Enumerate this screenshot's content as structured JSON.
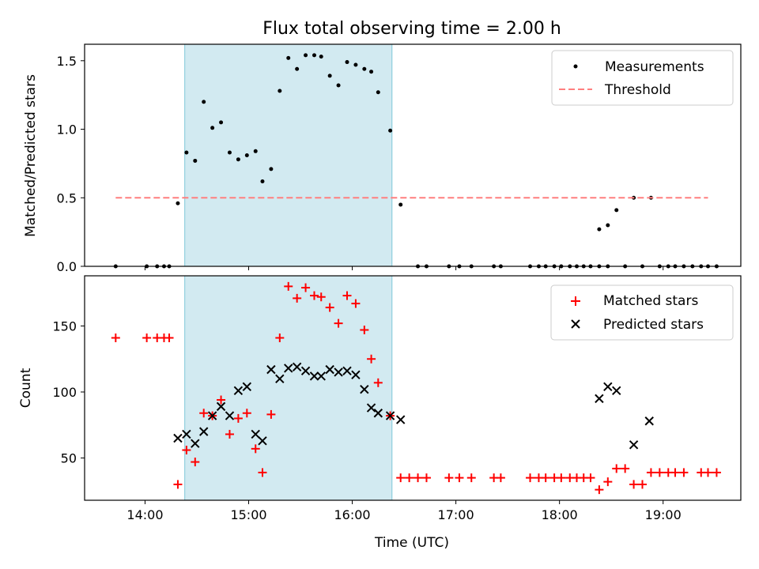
{
  "figure": {
    "title": "Flux total observing time = 2.00 h"
  },
  "chart_data": [
    {
      "type": "scatter",
      "ylabel": "Matched/Predicted stars",
      "xlim": [
        "13:25",
        "19:45"
      ],
      "ylim": [
        0,
        1.62
      ],
      "yticks": [
        "0.0",
        "0.5",
        "1.0",
        "1.5"
      ],
      "xticks": [
        "14:00",
        "15:00",
        "16:00",
        "17:00",
        "18:00",
        "19:00"
      ],
      "xticklabels_shown": false,
      "shaded_region": {
        "start": "14:23",
        "end": "16:23",
        "color": "#add8e6"
      },
      "legend": {
        "placement": "top-right",
        "entries": [
          "Measurements",
          "Threshold"
        ]
      },
      "series": [
        {
          "name": "Measurements",
          "marker": "dot",
          "color": "#000000",
          "x": [
            "13:43",
            "14:01",
            "14:07",
            "14:11",
            "14:14",
            "14:19",
            "14:24",
            "14:29",
            "14:34",
            "14:39",
            "14:44",
            "14:49",
            "14:54",
            "14:59",
            "15:04",
            "15:08",
            "15:13",
            "15:18",
            "15:23",
            "15:28",
            "15:33",
            "15:38",
            "15:42",
            "15:47",
            "15:52",
            "15:57",
            "16:02",
            "16:07",
            "16:11",
            "16:15",
            "16:22",
            "16:28",
            "16:34",
            "16:39",
            "16:44",
            "16:50",
            "16:55",
            "17:00",
            "17:06",
            "17:13",
            "17:18",
            "17:22",
            "17:40",
            "17:44",
            "17:49",
            "17:54",
            "17:59",
            "18:04",
            "18:09",
            "18:13",
            "18:18",
            "18:23",
            "18:28",
            "18:33",
            "18:38",
            "18:43",
            "18:48",
            "18:52",
            "18:57",
            "19:02",
            "19:07",
            "19:12",
            "19:17",
            "19:21",
            "19:26"
          ],
          "y": [
            0.0,
            0.0,
            0.0,
            0.0,
            0.0,
            0.46,
            0.83,
            0.77,
            1.2,
            1.01,
            1.05,
            0.83,
            0.78,
            0.81,
            0.84,
            0.62,
            0.71,
            1.28,
            1.52,
            1.44,
            1.54,
            1.54,
            1.53,
            1.39,
            1.32,
            1.49,
            1.47,
            1.44,
            1.42,
            1.27,
            0.99,
            0.45,
            0.0,
            0.0,
            0.0,
            0.0,
            0.0,
            0.0,
            0.0,
            0.0,
            0.0,
            0.0,
            0.0,
            0.0,
            0.0,
            0.0,
            0.0,
            0.0,
            0.0,
            0.0,
            0.27,
            0.3,
            0.41,
            0.0,
            0.5,
            0.0,
            0.5,
            0.0,
            0.0,
            0.0,
            0.0,
            0.0,
            0.0,
            0.0,
            0.0
          ],
          "plot_x": [
            "13:43",
            "14:01",
            "14:07",
            "14:11",
            "14:14",
            "14:19",
            "14:24",
            "14:29",
            "14:34",
            "14:39",
            "14:44",
            "14:49",
            "14:54",
            "14:59",
            "15:04",
            "15:08",
            "15:13",
            "15:18",
            "15:23",
            "15:28",
            "15:33",
            "15:38",
            "15:42",
            "15:47",
            "15:52",
            "15:57",
            "16:02",
            "16:07",
            "16:11",
            "16:15",
            "16:22",
            "16:28",
            "16:38",
            "16:43",
            "16:56",
            "17:02",
            "17:09",
            "17:22",
            "17:26",
            "17:43",
            "17:48",
            "17:52",
            "17:57",
            "18:01",
            "18:06",
            "18:10",
            "18:14",
            "18:18",
            "18:23",
            "18:28",
            "18:23",
            "18:28",
            "18:33",
            "18:38",
            "18:43",
            "18:48",
            "18:53",
            "18:58",
            "19:03",
            "19:07",
            "19:12",
            "19:17",
            "19:22",
            "19:26",
            "19:31"
          ]
        },
        {
          "name": "Threshold",
          "line": "dashed",
          "color": "#ff7f7f",
          "x": [
            "13:43",
            "19:26"
          ],
          "y": [
            0.5,
            0.5
          ]
        }
      ]
    },
    {
      "type": "scatter",
      "ylabel": "Count",
      "xlabel": "Time (UTC)",
      "xlim": [
        "13:25",
        "19:45"
      ],
      "ylim": [
        18,
        188
      ],
      "yticks": [
        "50",
        "100",
        "150"
      ],
      "xticks": [
        "14:00",
        "15:00",
        "16:00",
        "17:00",
        "18:00",
        "19:00"
      ],
      "shaded_region": {
        "start": "14:23",
        "end": "16:23",
        "color": "#add8e6"
      },
      "legend": {
        "placement": "top-right",
        "entries": [
          "Matched stars",
          "Predicted stars"
        ]
      },
      "series": [
        {
          "name": "Matched stars",
          "marker": "plus",
          "color": "#ff0000",
          "x": [
            "13:43",
            "14:01",
            "14:07",
            "14:11",
            "14:14",
            "14:19",
            "14:24",
            "14:29",
            "14:34",
            "14:39",
            "14:44",
            "14:49",
            "14:54",
            "14:59",
            "15:04",
            "15:08",
            "15:13",
            "15:18",
            "15:23",
            "15:28",
            "15:33",
            "15:38",
            "15:42",
            "15:47",
            "15:52",
            "15:57",
            "16:02",
            "16:07",
            "16:11",
            "16:15",
            "16:22",
            "16:28",
            "16:34",
            "16:39",
            "16:44",
            "16:56",
            "17:02",
            "17:09",
            "17:22",
            "17:26",
            "17:43",
            "17:48",
            "17:52",
            "17:57",
            "18:01",
            "18:06",
            "18:10",
            "18:14",
            "18:18",
            "18:23",
            "18:28",
            "18:33",
            "18:38",
            "18:43",
            "18:48",
            "18:52",
            "18:57",
            "19:02",
            "19:07",
            "19:12",
            "19:17",
            "19:21",
            "19:26"
          ],
          "y": [
            141,
            141,
            141,
            141,
            141,
            30,
            56,
            47,
            84,
            82,
            94,
            68,
            80,
            84,
            57,
            39,
            83,
            141,
            180,
            171,
            179,
            173,
            172,
            164,
            152,
            173,
            167,
            147,
            125,
            107,
            82,
            35,
            35,
            35,
            35,
            35,
            35,
            35,
            35,
            35,
            35,
            35,
            35,
            35,
            35,
            35,
            35,
            35,
            35,
            26,
            32,
            42,
            42,
            30,
            30,
            39,
            39,
            39,
            39,
            39,
            39,
            39,
            39
          ],
          "plot_x": [
            "13:43",
            "14:01",
            "14:07",
            "14:11",
            "14:14",
            "14:19",
            "14:24",
            "14:29",
            "14:34",
            "14:39",
            "14:44",
            "14:49",
            "14:54",
            "14:59",
            "15:04",
            "15:08",
            "15:13",
            "15:18",
            "15:23",
            "15:28",
            "15:33",
            "15:38",
            "15:42",
            "15:47",
            "15:52",
            "15:57",
            "16:02",
            "16:07",
            "16:11",
            "16:15",
            "16:22",
            "16:28",
            "16:33",
            "16:38",
            "16:43",
            "16:56",
            "17:02",
            "17:09",
            "17:22",
            "17:26",
            "17:43",
            "17:48",
            "17:52",
            "17:57",
            "18:01",
            "18:06",
            "18:10",
            "18:14",
            "18:18",
            "18:23",
            "18:28",
            "18:33",
            "18:38",
            "18:43",
            "18:48",
            "18:53",
            "18:58",
            "19:03",
            "19:07",
            "19:12",
            "19:22",
            "19:26",
            "19:31"
          ]
        },
        {
          "name": "Predicted stars",
          "marker": "x",
          "color": "#000000",
          "x": [
            "14:19",
            "14:24",
            "14:29",
            "14:34",
            "14:39",
            "14:44",
            "14:49",
            "14:54",
            "14:59",
            "15:04",
            "15:08",
            "15:13",
            "15:18",
            "15:23",
            "15:28",
            "15:33",
            "15:38",
            "15:42",
            "15:47",
            "15:52",
            "15:57",
            "16:02",
            "16:07",
            "16:11",
            "16:15",
            "16:22",
            "16:28",
            "18:23",
            "18:28",
            "18:33",
            "18:43",
            "18:52"
          ],
          "y": [
            65,
            68,
            61,
            70,
            82,
            89,
            82,
            101,
            104,
            68,
            63,
            117,
            110,
            118,
            119,
            116,
            112,
            112,
            117,
            115,
            116,
            113,
            102,
            88,
            84,
            82,
            79,
            95,
            104,
            101,
            60,
            78
          ]
        }
      ]
    }
  ]
}
